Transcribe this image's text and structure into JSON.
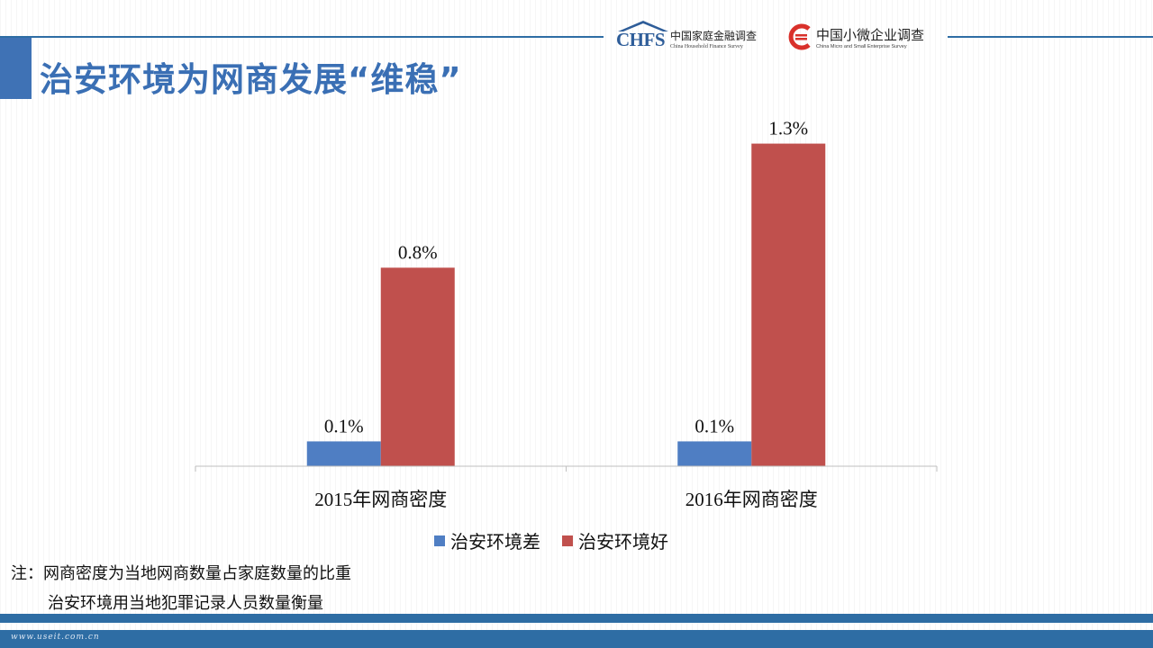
{
  "header": {
    "title": "治安环境为网商发展“维稳”",
    "logo_chfs": {
      "mark": "CHFS",
      "cn": "中国家庭金融调查",
      "en": "China Household Finance Survey"
    },
    "logo_micro": {
      "cn": "中国小微企业调查",
      "en": "China Micro and Small Enterprise Survey"
    }
  },
  "colors": {
    "accent": "#3a6fb4",
    "series_bad": "#4f7ec3",
    "series_good": "#c0504d",
    "band": "#2e6da4"
  },
  "chart_data": {
    "type": "bar",
    "categories": [
      "2015年网商密度",
      "2016年网商密度"
    ],
    "series": [
      {
        "name": "治安环境差",
        "values": [
          0.1,
          0.1
        ],
        "labels": [
          "0.1%",
          "0.1%"
        ],
        "color": "#4f7ec3"
      },
      {
        "name": "治安环境好",
        "values": [
          0.8,
          1.3
        ],
        "labels": [
          "0.8%",
          "1.3%"
        ],
        "color": "#c0504d"
      }
    ],
    "title": "",
    "xlabel": "",
    "ylabel": "",
    "ylim": [
      0,
      1.4
    ],
    "grid": false,
    "legend": "bottom"
  },
  "notes": {
    "line1": "注：网商密度为当地网商数量占家庭数量的比重",
    "line2": "治安环境用当地犯罪记录人员数量衡量"
  },
  "footer": {
    "watermark": "www.useit.com.cn"
  }
}
